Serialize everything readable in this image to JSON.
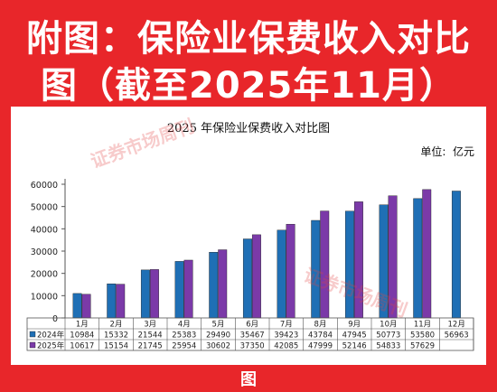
{
  "header": {
    "line1": "附图：保险业保费收入对比",
    "line2": "图（截至2025年11月）"
  },
  "footer": {
    "label": "图"
  },
  "watermark": "证券市场周刊",
  "colors": {
    "frame": "#e8262a",
    "series_2024": "#1f6fb5",
    "series_2025": "#7b3aa8"
  },
  "chart_data": {
    "type": "bar",
    "title": "2025 年保险业保费收入对比图",
    "unit": "单位:  亿元",
    "categories": [
      "1月",
      "2月",
      "3月",
      "4月",
      "5月",
      "6月",
      "7月",
      "8月",
      "9月",
      "10月",
      "11月",
      "12月"
    ],
    "series": [
      {
        "name": "2024年",
        "values": [
          10984,
          15332,
          21544,
          25383,
          29490,
          35467,
          39423,
          43784,
          47945,
          50773,
          53580,
          56963
        ]
      },
      {
        "name": "2025年",
        "values": [
          10617,
          15154,
          21745,
          25954,
          30602,
          37350,
          42085,
          47999,
          52146,
          54833,
          57629,
          null
        ]
      }
    ],
    "ylim": [
      0,
      60000
    ],
    "yticks": [
      0,
      10000,
      20000,
      30000,
      40000,
      50000,
      60000
    ],
    "grid": false,
    "legend": "table-below"
  }
}
